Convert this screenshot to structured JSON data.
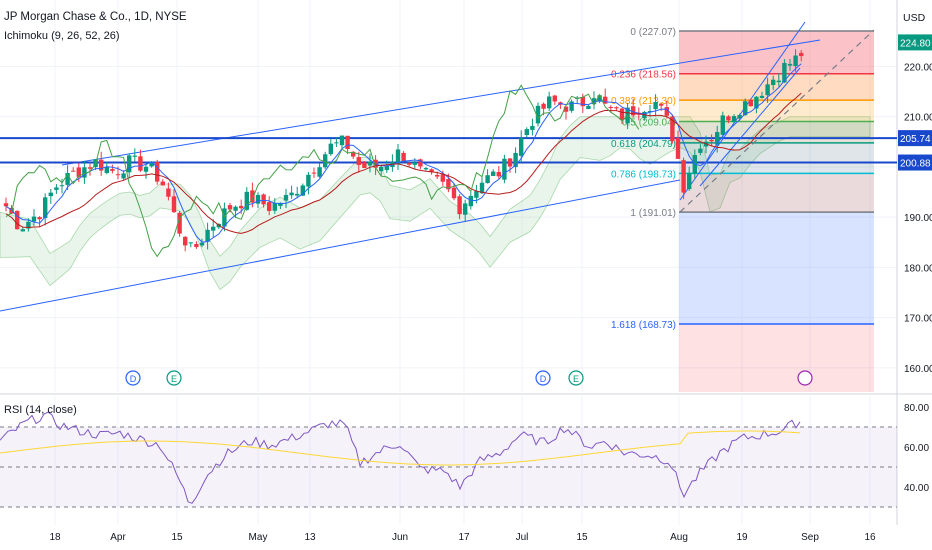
{
  "header": {
    "symbol_title": "JP Morgan Chase & Co., 1D, NYSE",
    "indicator_label": "Ichimoku (9, 26, 52, 26)",
    "currency": "USD"
  },
  "rsi": {
    "label": "RSI (14, close)",
    "ticks": [
      "80.00",
      "60.00",
      "40.00"
    ]
  },
  "chart_data": {
    "type": "candlestick",
    "title": "JP Morgan Chase & Co., 1D, NYSE",
    "y_range": [
      155,
      233
    ],
    "y_ticks": [
      "220.00",
      "210.00",
      "190.00",
      "180.00",
      "170.00",
      "160.00"
    ],
    "x_ticks": [
      "18",
      "Apr",
      "15",
      "May",
      "13",
      "Jun",
      "17",
      "Jul",
      "15",
      "Aug",
      "19",
      "Sep",
      "16"
    ],
    "price_labels": [
      {
        "text": "224.80",
        "value": 224.8,
        "color": "#089981"
      },
      {
        "text": "205.74",
        "value": 205.74,
        "color": "#1848cc"
      },
      {
        "text": "200.88",
        "value": 200.88,
        "color": "#1848cc"
      }
    ],
    "horizontal_levels": [
      205.74,
      200.88
    ],
    "fibonacci": [
      {
        "ratio": "0",
        "price": "(227.07)",
        "value": 227.07,
        "color": "#787b86"
      },
      {
        "ratio": "0.236",
        "price": "(218.56)",
        "value": 218.56,
        "color": "#f23645"
      },
      {
        "ratio": "0.382",
        "price": "(213.30)",
        "value": 213.3,
        "color": "#ff9800"
      },
      {
        "ratio": "0.5",
        "price": "(209.04)",
        "value": 209.04,
        "color": "#4caf50"
      },
      {
        "ratio": "0.618",
        "price": "(204.79)",
        "value": 204.79,
        "color": "#089981"
      },
      {
        "ratio": "0.786",
        "price": "(198.73)",
        "value": 198.73,
        "color": "#00bcd4"
      },
      {
        "ratio": "1",
        "price": "(191.01)",
        "value": 191.01,
        "color": "#787b86"
      },
      {
        "ratio": "1.618",
        "price": "(168.73)",
        "value": 168.73,
        "color": "#2962ff"
      }
    ],
    "event_markers": [
      "D",
      "E",
      "D",
      "E"
    ],
    "rsi_range": [
      28,
      82
    ],
    "rsi_levels": [
      70,
      50,
      30
    ]
  }
}
